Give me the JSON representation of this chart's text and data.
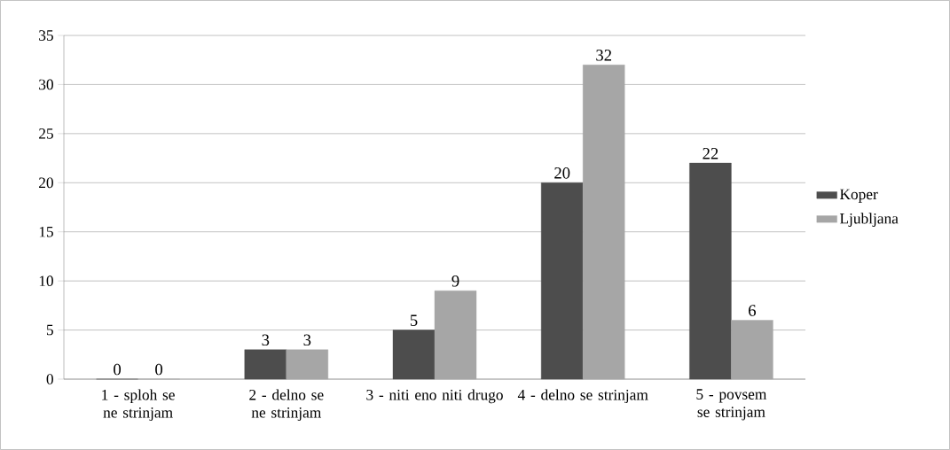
{
  "chart_data": {
    "type": "bar",
    "categories": [
      "1 - sploh se ne strinjam",
      "2 - delno se ne strinjam",
      "3 - niti eno niti drugo",
      "4 - delno se strinjam",
      "5 - povsem se strinjam"
    ],
    "series": [
      {
        "name": "Koper",
        "color": "#4d4d4d",
        "values": [
          0,
          3,
          5,
          20,
          22
        ]
      },
      {
        "name": "Ljubljana",
        "color": "#a6a6a6",
        "values": [
          0,
          3,
          9,
          32,
          6
        ]
      }
    ],
    "ylim": [
      0,
      35
    ],
    "yticks": [
      0,
      5,
      10,
      15,
      20,
      25,
      30,
      35
    ],
    "grid": "y",
    "legend": "right",
    "data_labels": true
  }
}
